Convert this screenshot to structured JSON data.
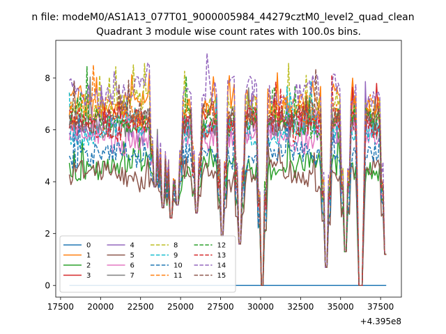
{
  "chart_data": {
    "type": "line",
    "suptitle": "n file: modeM0/AS1A13_077T01_9000005984_44279cztM0_level2_quad_clean",
    "title": "Quadrant 3 module wise count rates with 100.0s bins.",
    "xlabel": "",
    "ylabel": "",
    "offset_label": "+4.395e8",
    "xlim": [
      17200,
      38800
    ],
    "ylim": [
      -0.45,
      9.45
    ],
    "xticks": [
      17500,
      20000,
      22500,
      25000,
      27500,
      30000,
      32500,
      35000,
      37500
    ],
    "xtick_labels": [
      "17500",
      "20000",
      "22500",
      "25000",
      "27500",
      "30000",
      "32500",
      "35000",
      "37500"
    ],
    "yticks": [
      0,
      2,
      4,
      6,
      8
    ],
    "ytick_labels": [
      "0",
      "2",
      "4",
      "6",
      "8"
    ],
    "x_range": [
      18050,
      37850
    ],
    "bin_seconds": 100,
    "legend_position": "lower-left",
    "legend_columns": 4,
    "series": [
      {
        "name": "0",
        "color": "#1f77b4",
        "style": "solid",
        "base": 0.0
      },
      {
        "name": "1",
        "color": "#ff7f0e",
        "style": "solid",
        "base": 7.1
      },
      {
        "name": "2",
        "color": "#2ca02c",
        "style": "solid",
        "base": 4.6
      },
      {
        "name": "3",
        "color": "#d62728",
        "style": "solid",
        "base": 6.4
      },
      {
        "name": "4",
        "color": "#9467bd",
        "style": "solid",
        "base": 6.0
      },
      {
        "name": "5",
        "color": "#8c564b",
        "style": "solid",
        "base": 4.3
      },
      {
        "name": "6",
        "color": "#e377c2",
        "style": "solid",
        "base": 5.7
      },
      {
        "name": "7",
        "color": "#7f7f7f",
        "style": "solid",
        "base": 6.3
      },
      {
        "name": "8",
        "color": "#bcbd22",
        "style": "dashed",
        "base": 6.9
      },
      {
        "name": "9",
        "color": "#17becf",
        "style": "dashed",
        "base": 6.0
      },
      {
        "name": "10",
        "color": "#1f77b4",
        "style": "dashed",
        "base": 5.0
      },
      {
        "name": "11",
        "color": "#ff7f0e",
        "style": "dashed",
        "base": 6.7
      },
      {
        "name": "12",
        "color": "#2ca02c",
        "style": "dashed",
        "base": 6.3
      },
      {
        "name": "13",
        "color": "#d62728",
        "style": "dashed",
        "base": 6.2
      },
      {
        "name": "14",
        "color": "#9467bd",
        "style": "dashed",
        "base": 7.5
      },
      {
        "name": "15",
        "color": "#8c564b",
        "style": "dashed",
        "base": 6.5
      }
    ],
    "dips": [
      {
        "x": 23400,
        "level": 3.8
      },
      {
        "x": 23900,
        "level": 3.0
      },
      {
        "x": 24400,
        "level": 2.6
      },
      {
        "x": 24800,
        "level": 3.1
      },
      {
        "x": 26000,
        "level": 2.8
      },
      {
        "x": 27600,
        "level": 1.9
      },
      {
        "x": 28700,
        "level": 1.6
      },
      {
        "x": 30100,
        "level": 0.0
      },
      {
        "x": 34100,
        "level": 0.7
      },
      {
        "x": 35300,
        "level": 1.3
      },
      {
        "x": 36250,
        "level": 0.0
      },
      {
        "x": 37800,
        "level": 1.2
      }
    ]
  }
}
